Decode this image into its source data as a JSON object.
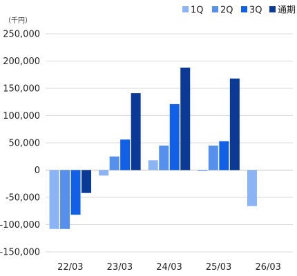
{
  "chart_data": {
    "type": "bar",
    "unit_label": "（千円）",
    "categories": [
      "22/03",
      "23/03",
      "24/03",
      "25/03",
      "26/03"
    ],
    "series": [
      {
        "name": "1Q",
        "color": "#8cb4f5",
        "values": [
          -108000,
          -10000,
          18000,
          -2000,
          -66000
        ]
      },
      {
        "name": "2Q",
        "color": "#5591ec",
        "values": [
          -108000,
          25000,
          45000,
          45000,
          null
        ]
      },
      {
        "name": "3Q",
        "color": "#1160e6",
        "values": [
          -82000,
          56000,
          121000,
          53000,
          null
        ]
      },
      {
        "name": "通期",
        "color": "#0a3a96",
        "values": [
          -42000,
          141000,
          188000,
          168000,
          null
        ]
      }
    ],
    "ylim": [
      -150000,
      250000
    ],
    "y_ticks": [
      "250,000",
      "200,000",
      "150,000",
      "100,000",
      "50,000",
      "0",
      "-50,000",
      "-100,000",
      "-150,000"
    ],
    "grid": true,
    "legend_position": "top-right"
  }
}
